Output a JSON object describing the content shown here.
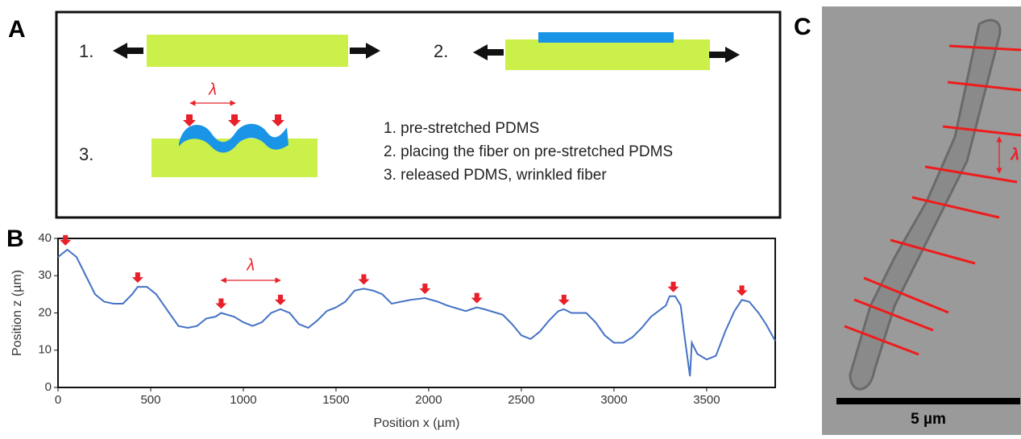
{
  "panel_a": {
    "label": "A",
    "steps": [
      "1.",
      "2.",
      "3."
    ],
    "lambda": "λ",
    "notes": [
      "1. pre-stretched PDMS",
      "2. placing the fiber on pre-stretched PDMS",
      "3. released PDMS, wrinkled fiber"
    ]
  },
  "panel_b": {
    "label": "B",
    "lambda": "λ"
  },
  "panel_c": {
    "label": "C",
    "lambda": "λ",
    "scale_bar": "5 µm"
  },
  "chart_data": {
    "type": "line",
    "x_label": "Position x (µm)",
    "y_label": "Position z (µm)",
    "x": [
      0,
      50,
      100,
      150,
      200,
      250,
      300,
      350,
      400,
      430,
      480,
      530,
      600,
      650,
      700,
      750,
      800,
      850,
      880,
      950,
      1000,
      1050,
      1100,
      1150,
      1200,
      1250,
      1300,
      1350,
      1400,
      1450,
      1500,
      1550,
      1600,
      1650,
      1700,
      1750,
      1800,
      1850,
      1900,
      1980,
      2050,
      2100,
      2200,
      2230,
      2260,
      2300,
      2400,
      2450,
      2500,
      2550,
      2600,
      2650,
      2700,
      2730,
      2770,
      2850,
      2900,
      2950,
      3000,
      3050,
      3100,
      3150,
      3200,
      3280,
      3300,
      3330,
      3360,
      3380,
      3410,
      3420,
      3450,
      3500,
      3550,
      3600,
      3650,
      3690,
      3730,
      3780,
      3820,
      3870
    ],
    "series": [
      {
        "color": "#4472c4",
        "values": [
          35,
          37,
          35,
          30,
          25,
          23,
          22.5,
          22.5,
          25,
          27,
          27,
          25,
          20,
          16.5,
          16,
          16.5,
          18.5,
          19,
          20,
          19,
          17.5,
          16.5,
          17.5,
          20,
          21,
          20,
          17,
          16,
          18,
          20.5,
          21.5,
          23,
          26,
          26.5,
          26,
          25,
          22.5,
          23,
          23.5,
          24,
          23,
          22,
          20.5,
          21,
          21.5,
          21,
          19.5,
          17,
          14,
          13,
          15,
          18,
          20.5,
          21,
          20,
          20,
          17.5,
          14,
          12,
          12,
          13.5,
          16,
          19,
          22,
          24.5,
          24.5,
          22,
          14,
          3,
          12,
          9,
          7.5,
          8.5,
          15,
          20.5,
          23.5,
          23,
          20,
          17,
          12.5
        ]
      }
    ],
    "markers": {
      "color": "#e8202a",
      "x": [
        40,
        430,
        880,
        1200,
        1650,
        1980,
        2260,
        2730,
        3320,
        3690
      ],
      "y": [
        37,
        27,
        20,
        21,
        26.5,
        24,
        21.5,
        21,
        24.5,
        23.5
      ]
    },
    "xlim": [
      0,
      3870
    ],
    "ylim": [
      0,
      40
    ],
    "xticks": [
      0,
      500,
      1000,
      1500,
      2000,
      2500,
      3000,
      3500
    ],
    "yticks": [
      0,
      10,
      20,
      30,
      40
    ]
  }
}
